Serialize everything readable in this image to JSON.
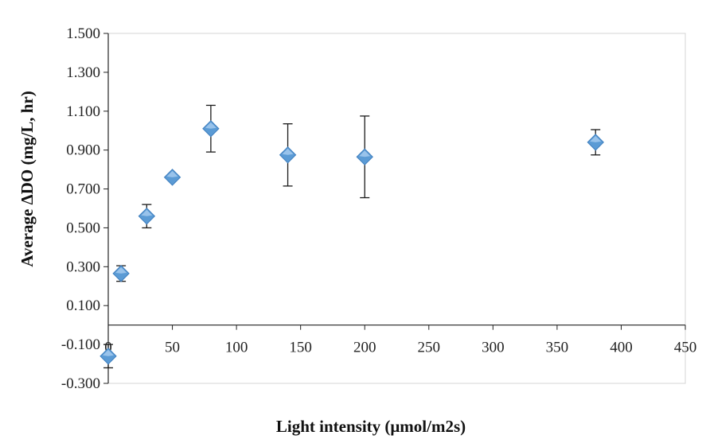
{
  "chart_data": {
    "type": "scatter",
    "xlabel": "Light intensity (μmol/m2s)",
    "ylabel": "Average ΔDO (mg/L, hr)",
    "xlim": [
      0,
      450
    ],
    "ylim": [
      -0.3,
      1.5
    ],
    "x_ticks": [
      0,
      50,
      100,
      150,
      200,
      250,
      300,
      350,
      400,
      450
    ],
    "x_tick_labels": [
      "0",
      "50",
      "100",
      "150",
      "200",
      "250",
      "300",
      "350",
      "400",
      "450"
    ],
    "y_ticks": [
      -0.3,
      -0.1,
      0.1,
      0.3,
      0.5,
      0.7,
      0.9,
      1.1,
      1.3,
      1.5
    ],
    "y_tick_labels": [
      "-0.300",
      "-0.100",
      "0.100",
      "0.300",
      "0.500",
      "0.700",
      "0.900",
      "1.100",
      "1.300",
      "1.500"
    ],
    "grid": false,
    "marker": "diamond",
    "marker_color": "#5b9bd5",
    "points": [
      {
        "x": 0,
        "y": -0.16,
        "err_low": 0.06,
        "err_high": 0.06
      },
      {
        "x": 10,
        "y": 0.265,
        "err_low": 0.04,
        "err_high": 0.04
      },
      {
        "x": 30,
        "y": 0.56,
        "err_low": 0.06,
        "err_high": 0.06
      },
      {
        "x": 50,
        "y": 0.76,
        "err_low": 0.0,
        "err_high": 0.0
      },
      {
        "x": 80,
        "y": 1.01,
        "err_low": 0.12,
        "err_high": 0.12
      },
      {
        "x": 140,
        "y": 0.875,
        "err_low": 0.16,
        "err_high": 0.16
      },
      {
        "x": 200,
        "y": 0.865,
        "err_low": 0.21,
        "err_high": 0.21
      },
      {
        "x": 380,
        "y": 0.94,
        "err_low": 0.065,
        "err_high": 0.065
      }
    ]
  }
}
